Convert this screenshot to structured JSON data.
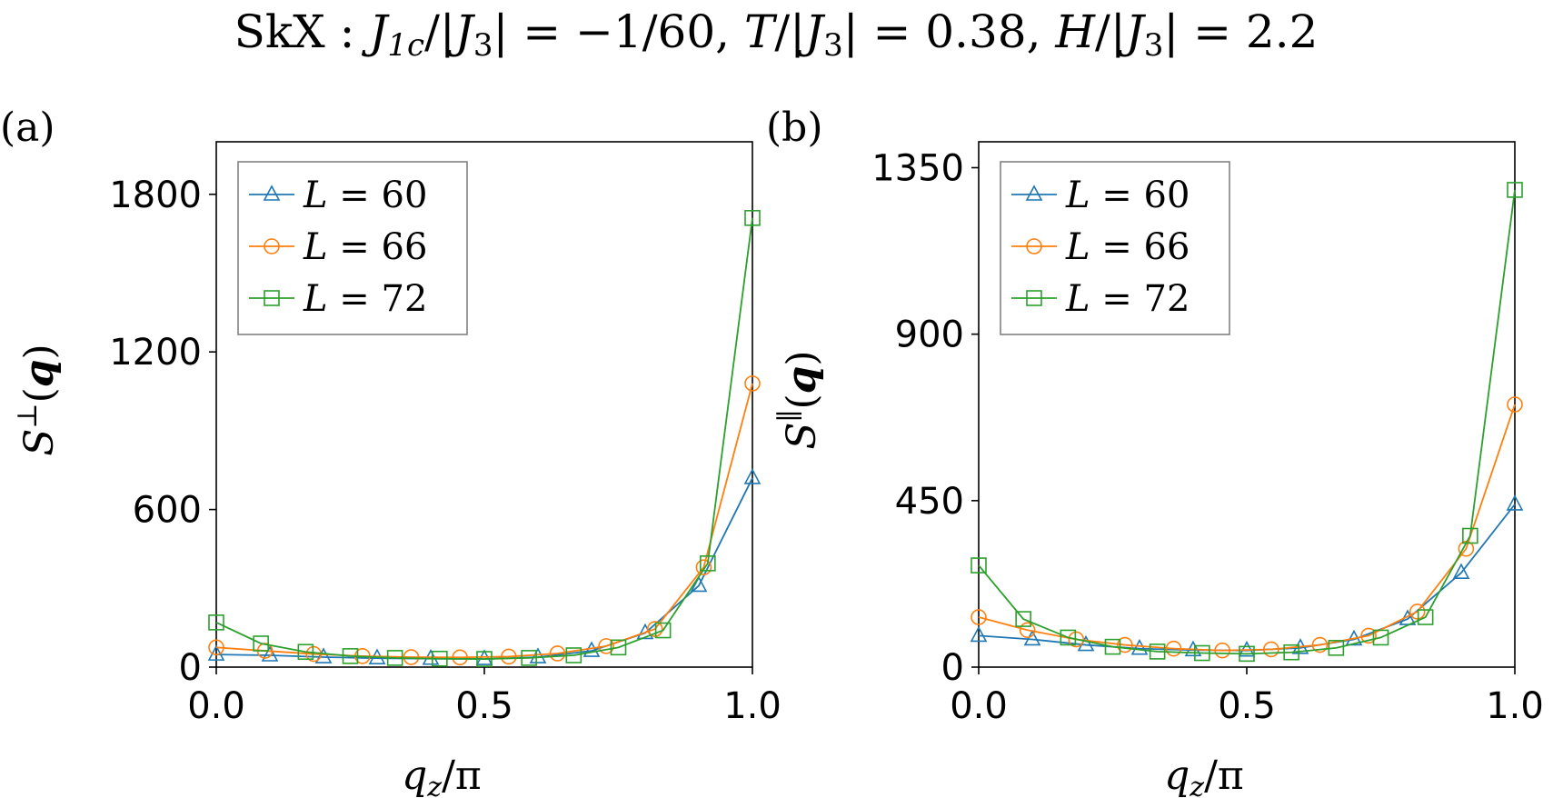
{
  "figure": {
    "title": "SkX : J_1c/|J_3| = −1/60,  T/|J_3| = 0.38,  H/|J_3| = 2.2",
    "title_parts": {
      "prefix": "SkX : ",
      "j1c_base": "J",
      "j1c_sub": "1c",
      "over_j3_a": "/|",
      "j3_base": "J",
      "j3_sub": "3",
      "eq1": "| = −1/60,  ",
      "t_var": "T",
      "over_j3_b": "/|",
      "eq2": "| = 0.38,  ",
      "h_var": "H",
      "over_j3_c": "/|",
      "eq3": "| = 2.2"
    }
  },
  "colors": {
    "L60": "#1f77b4",
    "L66": "#ff7f0e",
    "L72": "#2ca02c",
    "axis": "#000000",
    "legend_border": "#808080"
  },
  "chart_data": [
    {
      "type": "line",
      "panel_label": "(a)",
      "xlabel": "q_z/π",
      "ylabel": "S^⊥(q)",
      "xlim": [
        0.0,
        1.0
      ],
      "ylim": [
        0,
        2000
      ],
      "xticks": [
        0.0,
        0.5,
        1.0
      ],
      "xtick_labels": [
        "0.0",
        "0.5",
        "1.0"
      ],
      "yticks": [
        0,
        600,
        1200,
        1800
      ],
      "ytick_labels": [
        "0",
        "600",
        "1200",
        "1800"
      ],
      "legend": "top-left",
      "series": [
        {
          "name": "L = 60",
          "marker": "triangle",
          "color_key": "L60",
          "x": [
            0.0,
            0.1,
            0.2,
            0.3,
            0.4,
            0.5,
            0.6,
            0.7,
            0.8,
            0.9,
            1.0
          ],
          "y": [
            48,
            45,
            38,
            34,
            32,
            31,
            38,
            62,
            130,
            310,
            720
          ]
        },
        {
          "name": "L = 66",
          "marker": "circle",
          "color_key": "L66",
          "x": [
            0.0,
            0.0909,
            0.1818,
            0.2727,
            0.3636,
            0.4545,
            0.5455,
            0.6364,
            0.7273,
            0.8182,
            0.9091,
            1.0
          ],
          "y": [
            75,
            62,
            50,
            42,
            38,
            37,
            40,
            52,
            80,
            145,
            380,
            1080
          ]
        },
        {
          "name": "L = 72",
          "marker": "square",
          "color_key": "L72",
          "x": [
            0.0,
            0.0833,
            0.1667,
            0.25,
            0.3333,
            0.4167,
            0.5,
            0.5833,
            0.6667,
            0.75,
            0.8333,
            0.9167,
            1.0
          ],
          "y": [
            170,
            90,
            58,
            42,
            35,
            32,
            31,
            35,
            45,
            75,
            140,
            395,
            1710
          ]
        }
      ]
    },
    {
      "type": "line",
      "panel_label": "(b)",
      "xlabel": "q_z/π",
      "ylabel": "S^∥(q)",
      "xlim": [
        0.0,
        1.0
      ],
      "ylim": [
        0,
        1420
      ],
      "xticks": [
        0.0,
        0.5,
        1.0
      ],
      "xtick_labels": [
        "0.0",
        "0.5",
        "1.0"
      ],
      "yticks": [
        0,
        450,
        900,
        1350
      ],
      "ytick_labels": [
        "0",
        "450",
        "900",
        "1350"
      ],
      "legend": "top-left",
      "series": [
        {
          "name": "L = 60",
          "marker": "triangle",
          "color_key": "L60",
          "x": [
            0.0,
            0.1,
            0.2,
            0.3,
            0.4,
            0.5,
            0.6,
            0.7,
            0.8,
            0.9,
            1.0
          ],
          "y": [
            85,
            75,
            60,
            50,
            46,
            45,
            52,
            75,
            130,
            255,
            440
          ]
        },
        {
          "name": "L = 66",
          "marker": "circle",
          "color_key": "L66",
          "x": [
            0.0,
            0.0909,
            0.1818,
            0.2727,
            0.3636,
            0.4545,
            0.5455,
            0.6364,
            0.7273,
            0.8182,
            0.9091,
            1.0
          ],
          "y": [
            135,
            100,
            75,
            60,
            50,
            45,
            48,
            60,
            85,
            150,
            320,
            710
          ]
        },
        {
          "name": "L = 72",
          "marker": "square",
          "color_key": "L72",
          "x": [
            0.0,
            0.0833,
            0.1667,
            0.25,
            0.3333,
            0.4167,
            0.5,
            0.5833,
            0.6667,
            0.75,
            0.8333,
            0.9167,
            1.0
          ],
          "y": [
            275,
            130,
            80,
            55,
            42,
            38,
            36,
            40,
            52,
            80,
            135,
            355,
            1290
          ]
        }
      ]
    }
  ]
}
